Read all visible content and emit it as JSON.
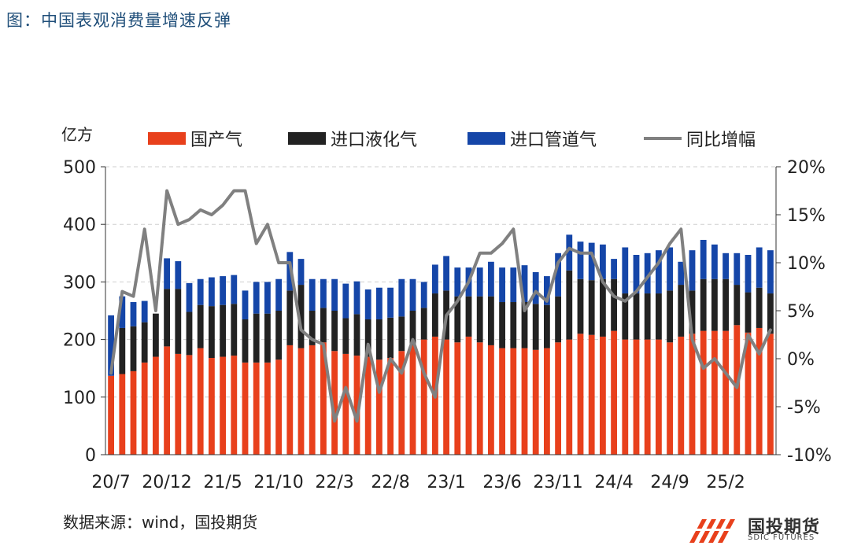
{
  "page": {
    "title": "图：中国表观消费量增速反弹",
    "source": "数据来源：wind，国投期货",
    "logo_name": "国投期货",
    "logo_sub": "SDIC FUTURES"
  },
  "colors": {
    "domestic": "#e8401c",
    "lng": "#222222",
    "pipeline": "#1546a8",
    "yoy": "#808080",
    "grid": "#cfcfcf"
  },
  "chart_data": {
    "type": "bar",
    "stacked": true,
    "ylabel_left": "亿方",
    "ylim_left": [
      0,
      500
    ],
    "yticks_left": [
      "0",
      "100",
      "200",
      "300",
      "400",
      "500"
    ],
    "ylim_right": [
      -10,
      20
    ],
    "yticks_right": [
      "-10%",
      "-5%",
      "0%",
      "5%",
      "10%",
      "15%",
      "20%"
    ],
    "xtick_labels": [
      "20/7",
      "20/12",
      "21/5",
      "21/10",
      "22/3",
      "22/8",
      "23/1",
      "23/6",
      "23/11",
      "24/4",
      "24/9",
      "25/2"
    ],
    "legend": [
      "国产气",
      "进口液化气",
      "进口管道气",
      "同比增幅"
    ],
    "grid": "horizontal dashed",
    "legend_position": "top",
    "categories": [
      "20/7",
      "20/8",
      "20/9",
      "20/10",
      "20/11",
      "20/12",
      "21/1",
      "21/2",
      "21/3",
      "21/4",
      "21/5",
      "21/6",
      "21/7",
      "21/8",
      "21/9",
      "21/10",
      "21/11",
      "21/12",
      "22/1",
      "22/2",
      "22/3",
      "22/4",
      "22/5",
      "22/6",
      "22/7",
      "22/8",
      "22/9",
      "22/10",
      "22/11",
      "22/12",
      "23/1",
      "23/2",
      "23/3",
      "23/4",
      "23/5",
      "23/6",
      "23/7",
      "23/8",
      "23/9",
      "23/10",
      "23/11",
      "23/12",
      "24/1",
      "24/2",
      "24/3",
      "24/4",
      "24/5",
      "24/6",
      "24/7",
      "24/8",
      "24/9",
      "24/10",
      "24/11",
      "24/12",
      "25/1",
      "25/2",
      "25/3",
      "25/4",
      "25/5",
      "25/6"
    ],
    "series": [
      {
        "name": "国产气",
        "axis": "left",
        "kind": "bar",
        "values": [
          137,
          140,
          145,
          160,
          170,
          188,
          175,
          173,
          185,
          168,
          170,
          172,
          160,
          160,
          160,
          165,
          190,
          185,
          190,
          195,
          180,
          175,
          172,
          170,
          165,
          168,
          180,
          190,
          200,
          205,
          200,
          195,
          205,
          195,
          190,
          185,
          185,
          185,
          182,
          185,
          195,
          200,
          210,
          208,
          205,
          215,
          200,
          200,
          200,
          200,
          195,
          205,
          210,
          215,
          215,
          215,
          225,
          212,
          220,
          210
        ]
      },
      {
        "name": "进口液化气",
        "axis": "left",
        "kind": "bar",
        "values": [
          0,
          80,
          78,
          70,
          75,
          100,
          113,
          75,
          75,
          90,
          90,
          90,
          75,
          85,
          85,
          85,
          95,
          110,
          60,
          60,
          70,
          62,
          72,
          65,
          70,
          70,
          60,
          60,
          55,
          75,
          85,
          80,
          70,
          80,
          85,
          80,
          80,
          80,
          80,
          75,
          80,
          120,
          95,
          95,
          100,
          90,
          80,
          80,
          80,
          80,
          90,
          90,
          75,
          90,
          90,
          90,
          70,
          70,
          70,
          70
        ]
      },
      {
        "name": "进口管道气",
        "axis": "left",
        "kind": "bar",
        "values": [
          105,
          55,
          42,
          37,
          0,
          53,
          48,
          50,
          45,
          50,
          50,
          50,
          50,
          55,
          55,
          55,
          67,
          45,
          55,
          50,
          55,
          60,
          57,
          52,
          55,
          52,
          65,
          55,
          45,
          50,
          60,
          50,
          50,
          50,
          60,
          60,
          60,
          64,
          55,
          50,
          75,
          62,
          65,
          65,
          60,
          35,
          80,
          67,
          70,
          75,
          75,
          40,
          70,
          68,
          60,
          45,
          55,
          65,
          70,
          75
        ]
      },
      {
        "name": "同比增幅",
        "axis": "right",
        "kind": "line",
        "values": [
          -1.5,
          7,
          6.5,
          13.5,
          5,
          17.5,
          14,
          14.5,
          15.5,
          15,
          16,
          17.5,
          17.5,
          12,
          14,
          10,
          10,
          3,
          2,
          1.5,
          -6.5,
          -3,
          -6.5,
          1.5,
          -3.5,
          0,
          -1.5,
          2,
          -1.5,
          -4,
          4.5,
          6,
          8,
          11,
          11,
          12,
          13.5,
          5,
          7,
          6,
          10,
          11.5,
          11,
          11,
          8,
          6.5,
          6,
          7,
          8.5,
          10,
          12,
          13.5,
          2,
          -1,
          0,
          -1.5,
          -3,
          2.5,
          0.5,
          3
        ]
      }
    ]
  }
}
